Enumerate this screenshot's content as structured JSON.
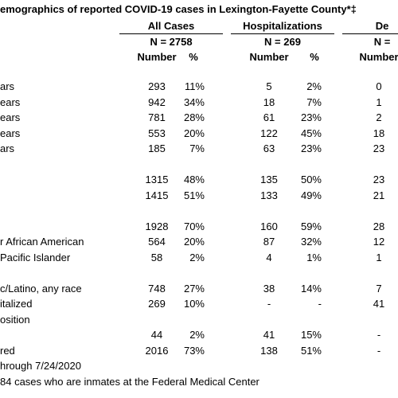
{
  "header": {
    "title": "emographics of reported COVID-19 cases in Lexington-Fayette County*‡"
  },
  "table": {
    "groups": [
      "All Cases",
      "Hospitalizations",
      "De"
    ],
    "totals": [
      "N = 2758",
      "N = 269",
      "N ="
    ],
    "subheaders": [
      "Number",
      "%",
      "Number",
      "%",
      "Number"
    ],
    "rows": [
      {
        "label": "ars",
        "cells": [
          "293",
          "11%",
          "5",
          "2%",
          "0"
        ]
      },
      {
        "label": "ears",
        "cells": [
          "942",
          "34%",
          "18",
          "7%",
          "1"
        ]
      },
      {
        "label": "ears",
        "cells": [
          "781",
          "28%",
          "61",
          "23%",
          "2"
        ]
      },
      {
        "label": "ears",
        "cells": [
          "553",
          "20%",
          "122",
          "45%",
          "18"
        ]
      },
      {
        "label": "ars",
        "cells": [
          "185",
          "7%",
          "63",
          "23%",
          "23"
        ]
      },
      {
        "cells": [
          "1315",
          "48%",
          "135",
          "50%",
          "23"
        ]
      },
      {
        "cells": [
          "1415",
          "51%",
          "133",
          "49%",
          "21"
        ]
      },
      {
        "cells": [
          "1928",
          "70%",
          "160",
          "59%",
          "28"
        ]
      },
      {
        "label": "r African American",
        "cells": [
          "564",
          "20%",
          "87",
          "32%",
          "12"
        ]
      },
      {
        "label": "Pacific Islander",
        "cells": [
          "58",
          "2%",
          "4",
          "1%",
          "1"
        ]
      },
      {
        "label": "c/Latino, any race",
        "cells": [
          "748",
          "27%",
          "38",
          "14%",
          "7"
        ]
      },
      {
        "label": "italized",
        "cells": [
          "269",
          "10%",
          "-",
          "-",
          "41"
        ]
      },
      {
        "label": "osition"
      },
      {
        "cells": [
          "44",
          "2%",
          "41",
          "15%",
          "-"
        ]
      },
      {
        "label": "red",
        "cells": [
          "2016",
          "73%",
          "138",
          "51%",
          "-"
        ]
      }
    ]
  },
  "footnotes": [
    "hrough 7/24/2020",
    "84 cases who are inmates at the Federal Medical Center"
  ]
}
